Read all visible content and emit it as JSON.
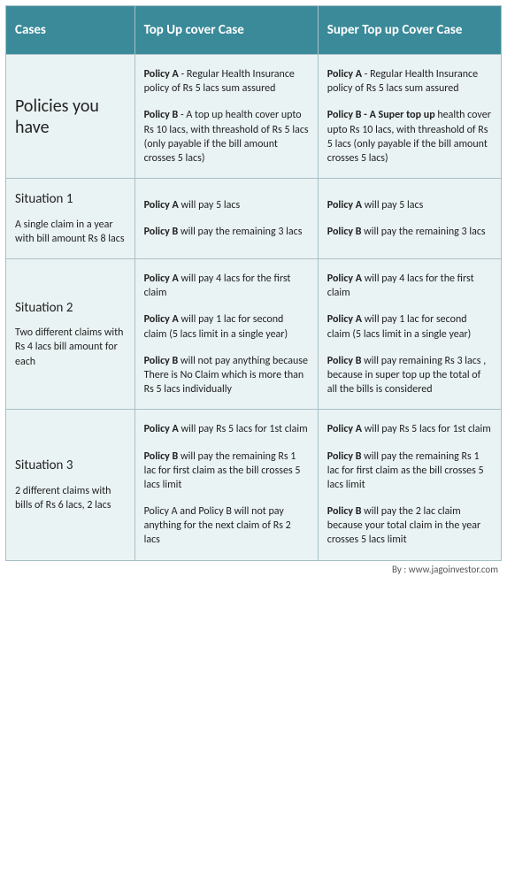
{
  "headers": {
    "col1": "Cases",
    "col2": "Top Up cover Case",
    "col3": "Super Top up Cover Case"
  },
  "rows": [
    {
      "title": "Policies you have",
      "sub": "",
      "topup": [
        {
          "bold": "Policy A",
          "rest": " - Regular Health Insurance policy of Rs 5 lacs sum assured"
        },
        {
          "bold": "Policy B",
          "rest": " - A top up health cover upto Rs 10 lacs, with threashold of Rs 5 lacs (only payable if the bill amount crosses 5 lacs)"
        }
      ],
      "super": [
        {
          "bold": "Policy A",
          "rest": " - Regular Health Insurance policy of Rs 5 lacs sum assured"
        },
        {
          "bold": "Policy B - A Super top up",
          "rest": " health cover upto Rs 10 lacs, with threashold of Rs 5 lacs (only payable if the bill amount crosses 5 lacs)"
        }
      ]
    },
    {
      "title": "Situation 1",
      "sub": "A single claim in a year with bill amount Rs 8 lacs",
      "topup": [
        {
          "bold": "Policy A",
          "rest": " will pay 5 lacs"
        },
        {
          "bold": "Policy B",
          "rest": " will pay the remaining 3 lacs"
        }
      ],
      "super": [
        {
          "bold": "Policy A",
          "rest": " will pay 5 lacs"
        },
        {
          "bold": "Policy B",
          "rest": " will pay the remaining 3 lacs"
        }
      ]
    },
    {
      "title": "Situation 2",
      "sub": "Two different claims with Rs 4 lacs bill amount for each",
      "topup": [
        {
          "bold": "Policy A",
          "rest": " will pay 4 lacs for the first claim"
        },
        {
          "bold": "Policy A",
          "rest": " will pay 1 lac for second claim (5 lacs limit in a single year)"
        },
        {
          "bold": "Policy B",
          "rest": " will not pay anything because There is No Claim which is more than Rs 5 lacs individually"
        }
      ],
      "super": [
        {
          "bold": "Policy A",
          "rest": " will pay 4 lacs for the first claim"
        },
        {
          "bold": "Policy A",
          "rest": " will pay 1 lac for second claim (5 lacs limit in a single year)"
        },
        {
          "bold": "Policy B",
          "rest": " will pay remaining Rs 3 lacs , because in super top up the total of all the bills is considered"
        }
      ]
    },
    {
      "title": "Situation 3",
      "sub": "2 different claims with bills of Rs 6 lacs, 2 lacs",
      "topup": [
        {
          "bold": "Policy A",
          "rest": " will pay Rs 5 lacs for 1st claim"
        },
        {
          "bold": "Policy B",
          "rest": " will pay the remaining Rs 1 lac for first claim as the bill crosses 5 lacs limit"
        },
        {
          "bold": "",
          "rest": "Policy A and Policy B will not pay anything for the next claim of Rs 2 lacs"
        }
      ],
      "super": [
        {
          "bold": "Policy A",
          "rest": " will pay Rs 5 lacs for 1st claim"
        },
        {
          "bold": "Policy B",
          "rest": " will pay the remaining Rs 1 lac for first claim as the bill crosses 5 lacs limit"
        },
        {
          "bold": "Policy B",
          "rest": " will pay the 2 lac claim because your total claim in the year crosses 5 lacs limit"
        }
      ]
    }
  ],
  "footer": "By : www.jagoinvestor.com",
  "colors": {
    "header_bg": "#3a8a99",
    "cell_bg": "#eaf3f4",
    "border": "#a8c0c8"
  }
}
